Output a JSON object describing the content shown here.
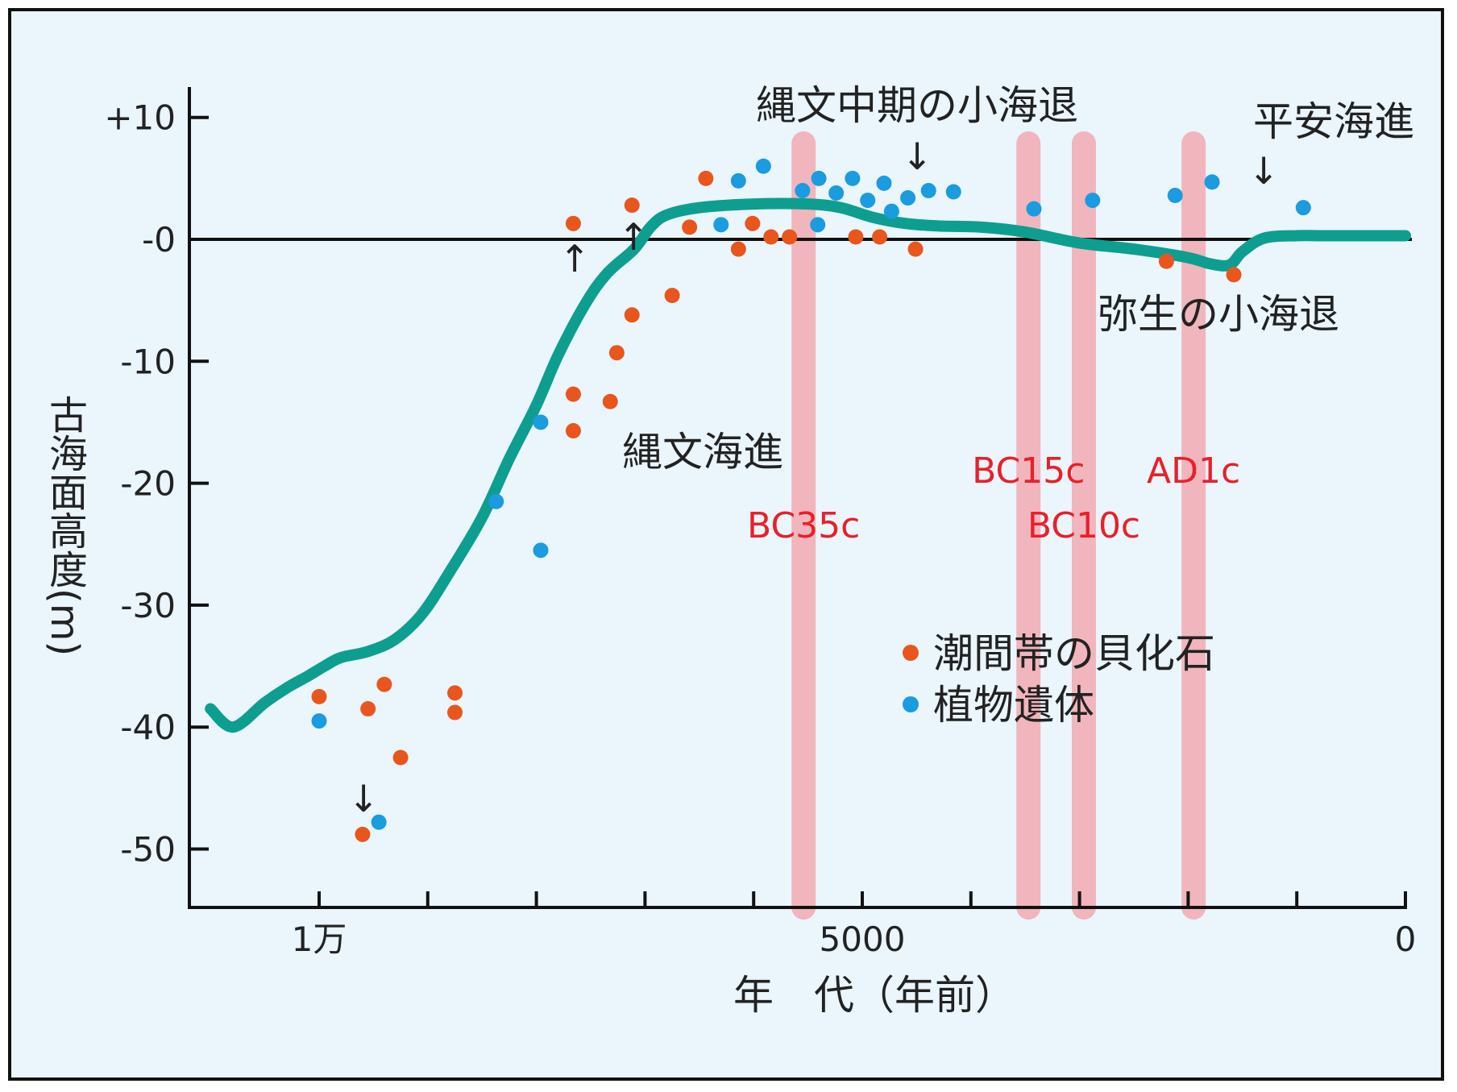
{
  "chart_data": {
    "type": "scatter",
    "title": "",
    "xlabel": "年　代（年前）",
    "ylabel": "古海面高度(m)",
    "x_reversed": true,
    "xlim": [
      11100,
      0
    ],
    "ylim": [
      -55,
      10
    ],
    "x_ticks": [
      {
        "value": 10000,
        "label": "1万"
      },
      {
        "value": 9000,
        "label": ""
      },
      {
        "value": 8000,
        "label": ""
      },
      {
        "value": 7000,
        "label": ""
      },
      {
        "value": 6000,
        "label": ""
      },
      {
        "value": 5000,
        "label": "5000"
      },
      {
        "value": 4000,
        "label": ""
      },
      {
        "value": 3000,
        "label": ""
      },
      {
        "value": 2000,
        "label": ""
      },
      {
        "value": 1000,
        "label": ""
      },
      {
        "value": 0,
        "label": "0"
      }
    ],
    "y_ticks": [
      {
        "value": 10,
        "label": "+10"
      },
      {
        "value": 0,
        "label": "-0"
      },
      {
        "value": -10,
        "label": "-10"
      },
      {
        "value": -20,
        "label": "-20"
      },
      {
        "value": -30,
        "label": "-30"
      },
      {
        "value": -40,
        "label": "-40"
      },
      {
        "value": -50,
        "label": "-50"
      }
    ],
    "colors": {
      "shell": "#e8561e",
      "plant": "#1b9be0",
      "curve": "#0e9e90",
      "band": "#f4a0a8",
      "band_label": "#e8202a",
      "background": "#eaf5fc"
    },
    "legend": {
      "placement": "center-right",
      "entries": [
        {
          "name": "潮間帯の貝化石",
          "color": "#e8561e"
        },
        {
          "name": "植物遺体",
          "color": "#1b9be0"
        }
      ]
    },
    "series": [
      {
        "name": "潮間帯の貝化石",
        "points": [
          [
            10000,
            -37.5
          ],
          [
            9550,
            -38.5
          ],
          [
            9400,
            -36.5
          ],
          [
            9250,
            -42.5
          ],
          [
            8750,
            -37.2
          ],
          [
            8750,
            -38.8
          ],
          [
            9600,
            -48.8
          ],
          [
            7660,
            1.3
          ],
          [
            7660,
            -12.7
          ],
          [
            7660,
            -15.7
          ],
          [
            7320,
            -13.3
          ],
          [
            7260,
            -9.3
          ],
          [
            7120,
            2.8
          ],
          [
            7120,
            -6.2
          ],
          [
            6750,
            -4.6
          ],
          [
            6590,
            1.0
          ],
          [
            6440,
            5.0
          ],
          [
            6140,
            -0.8
          ],
          [
            6010,
            1.3
          ],
          [
            5840,
            0.2
          ],
          [
            5670,
            0.2
          ],
          [
            5060,
            0.2
          ],
          [
            4840,
            0.2
          ],
          [
            4510,
            -0.8
          ],
          [
            2200,
            -1.8
          ],
          [
            1580,
            -2.9
          ]
        ]
      },
      {
        "name": "植物遺体",
        "points": [
          [
            10000,
            -39.5
          ],
          [
            9450,
            -47.8
          ],
          [
            8370,
            -21.5
          ],
          [
            7960,
            -15.0
          ],
          [
            7960,
            -25.5
          ],
          [
            6300,
            1.2
          ],
          [
            6140,
            4.8
          ],
          [
            5910,
            6.0
          ],
          [
            5550,
            4.0
          ],
          [
            5410,
            1.2
          ],
          [
            5400,
            5.0
          ],
          [
            5240,
            3.8
          ],
          [
            5090,
            5.0
          ],
          [
            4950,
            3.2
          ],
          [
            4800,
            4.6
          ],
          [
            4730,
            2.3
          ],
          [
            4580,
            3.4
          ],
          [
            4390,
            4.0
          ],
          [
            4160,
            3.9
          ],
          [
            3420,
            2.5
          ],
          [
            2880,
            3.2
          ],
          [
            2120,
            3.6
          ],
          [
            1780,
            4.7
          ],
          [
            940,
            2.6
          ]
        ]
      },
      {
        "name": "",
        "type": "line",
        "points": [
          [
            11000,
            -38.5
          ],
          [
            10790,
            -40.0
          ],
          [
            10500,
            -38.0
          ],
          [
            10300,
            -36.8
          ],
          [
            10100,
            -35.8
          ],
          [
            9950,
            -35.0
          ],
          [
            9800,
            -34.3
          ],
          [
            9550,
            -33.8
          ],
          [
            9300,
            -32.8
          ],
          [
            9050,
            -30.7
          ],
          [
            8800,
            -27.3
          ],
          [
            8500,
            -22.8
          ],
          [
            8250,
            -18.0
          ],
          [
            8000,
            -13.6
          ],
          [
            7800,
            -9.5
          ],
          [
            7550,
            -5.3
          ],
          [
            7350,
            -2.8
          ],
          [
            7100,
            -0.8
          ],
          [
            6950,
            1.0
          ],
          [
            6800,
            2.0
          ],
          [
            6500,
            2.6
          ],
          [
            6000,
            2.9
          ],
          [
            5500,
            2.9
          ],
          [
            5200,
            2.6
          ],
          [
            4900,
            1.8
          ],
          [
            4600,
            1.3
          ],
          [
            4300,
            1.1
          ],
          [
            3900,
            1.0
          ],
          [
            3500,
            0.6
          ],
          [
            3000,
            -0.3
          ],
          [
            2500,
            -0.8
          ],
          [
            2000,
            -1.5
          ],
          [
            1800,
            -2.0
          ],
          [
            1620,
            -2.1
          ],
          [
            1500,
            -1.0
          ],
          [
            1300,
            0.1
          ],
          [
            1000,
            0.3
          ],
          [
            700,
            0.3
          ],
          [
            0,
            0.3
          ]
        ]
      }
    ],
    "highlight_bands": [
      {
        "x": 5540,
        "label": "BC35c"
      },
      {
        "x": 3470,
        "label": "BC15c"
      },
      {
        "x": 2960,
        "label": "BC10c"
      },
      {
        "x": 1950,
        "label": "AD1c"
      }
    ],
    "annotations": [
      {
        "text": "縄文中期の小海退",
        "arrow": "↓"
      },
      {
        "text": "平安海進",
        "arrow": "↓"
      },
      {
        "text": "縄文海進",
        "arrow": ""
      },
      {
        "text": "弥生の小海退",
        "arrow": ""
      },
      {
        "text": "",
        "arrow": "↑"
      },
      {
        "text": "",
        "arrow": "↑"
      },
      {
        "text": "",
        "arrow": "↓"
      }
    ]
  }
}
